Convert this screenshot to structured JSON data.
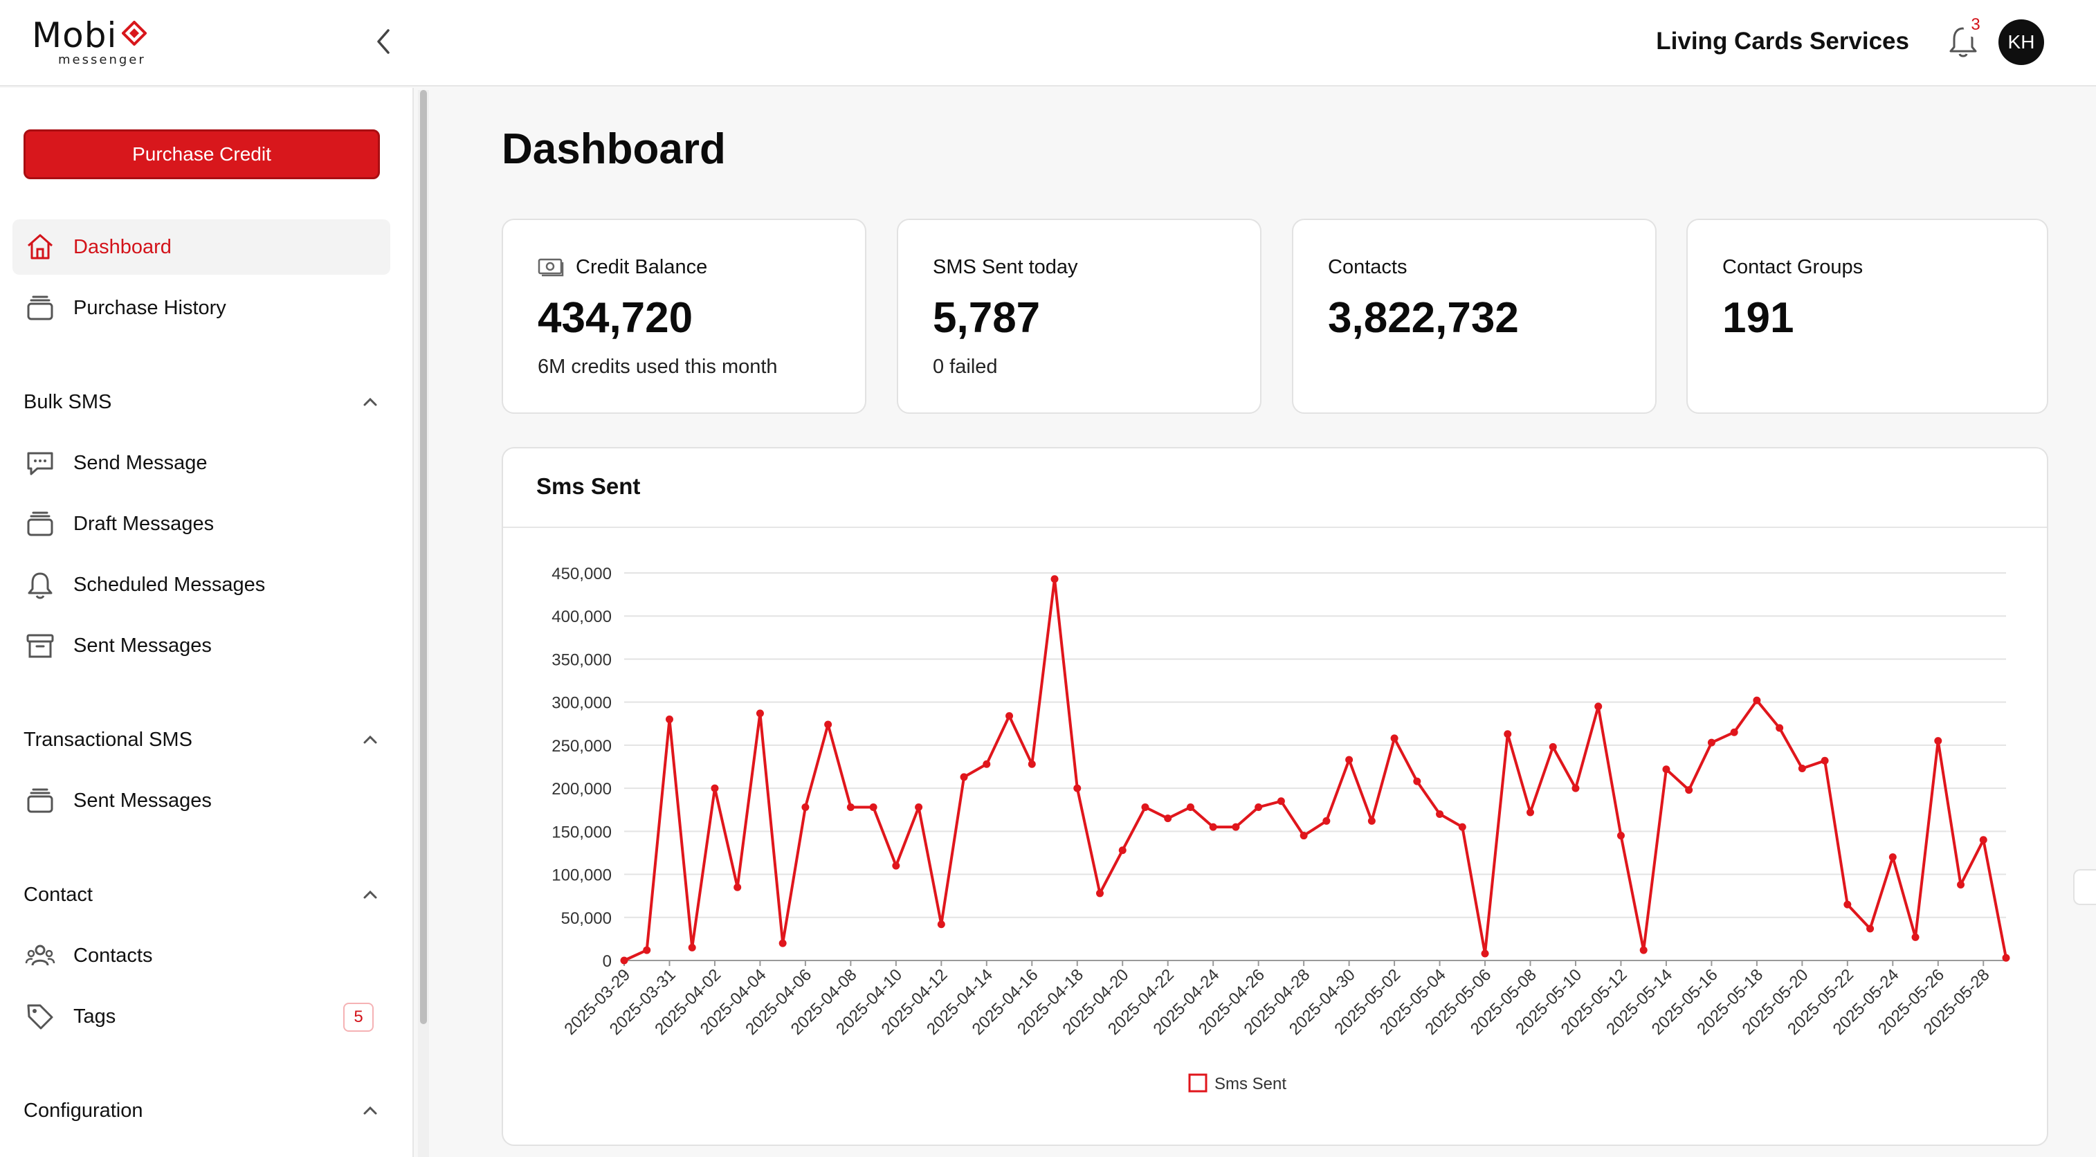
{
  "header": {
    "logo_main": "Mobi",
    "logo_sub": "messenger",
    "org_name": "Living Cards Services",
    "notification_count": "3",
    "avatar_initials": "KH"
  },
  "sidebar": {
    "purchase_label": "Purchase Credit",
    "top_items": [
      {
        "label": "Dashboard",
        "icon": "home-icon"
      },
      {
        "label": "Purchase History",
        "icon": "folder-icon"
      }
    ],
    "bulk_sms": {
      "label": "Bulk SMS",
      "items": [
        {
          "label": "Send Message",
          "icon": "chat-icon"
        },
        {
          "label": "Draft Messages",
          "icon": "folder-icon"
        },
        {
          "label": "Scheduled Messages",
          "icon": "bell-icon"
        },
        {
          "label": "Sent Messages",
          "icon": "archive-icon"
        }
      ]
    },
    "transactional_sms": {
      "label": "Transactional SMS",
      "items": [
        {
          "label": "Sent Messages",
          "icon": "folder-icon"
        }
      ]
    },
    "contact": {
      "label": "Contact",
      "items": [
        {
          "label": "Contacts",
          "icon": "users-icon"
        },
        {
          "label": "Tags",
          "icon": "tag-icon",
          "badge": "5"
        }
      ]
    },
    "configuration": {
      "label": "Configuration"
    }
  },
  "main": {
    "title": "Dashboard",
    "cards": [
      {
        "title": "Credit Balance",
        "value": "434,720",
        "sub": "6M credits used this month",
        "icon": "money-icon"
      },
      {
        "title": "SMS Sent today",
        "value": "5,787",
        "sub": "0 failed"
      },
      {
        "title": "Contacts",
        "value": "3,822,732",
        "sub": ""
      },
      {
        "title": "Contact Groups",
        "value": "191",
        "sub": ""
      }
    ]
  },
  "colors": {
    "accent": "#d8171c",
    "line": "#e0161c"
  },
  "chart_data": {
    "type": "line",
    "title": "Sms Sent",
    "xlabel": "",
    "ylabel": "",
    "ylim": [
      0,
      450000
    ],
    "yticks": [
      "0",
      "50,000",
      "100,000",
      "150,000",
      "200,000",
      "250,000",
      "300,000",
      "350,000",
      "400,000",
      "450,000"
    ],
    "legend": "bottom-center",
    "grid": true,
    "x": [
      "2025-03-29",
      "2025-03-30",
      "2025-03-31",
      "2025-04-01",
      "2025-04-02",
      "2025-04-03",
      "2025-04-04",
      "2025-04-05",
      "2025-04-06",
      "2025-04-07",
      "2025-04-08",
      "2025-04-09",
      "2025-04-10",
      "2025-04-11",
      "2025-04-12",
      "2025-04-13",
      "2025-04-14",
      "2025-04-15",
      "2025-04-16",
      "2025-04-17",
      "2025-04-18",
      "2025-04-19",
      "2025-04-20",
      "2025-04-21",
      "2025-04-22",
      "2025-04-23",
      "2025-04-24",
      "2025-04-25",
      "2025-04-26",
      "2025-04-27",
      "2025-04-28",
      "2025-04-29",
      "2025-04-30",
      "2025-05-01",
      "2025-05-02",
      "2025-05-03",
      "2025-05-04",
      "2025-05-05",
      "2025-05-06",
      "2025-05-07",
      "2025-05-08",
      "2025-05-09",
      "2025-05-10",
      "2025-05-11",
      "2025-05-12",
      "2025-05-13",
      "2025-05-14",
      "2025-05-15",
      "2025-05-16",
      "2025-05-17",
      "2025-05-18",
      "2025-05-19",
      "2025-05-20",
      "2025-05-21",
      "2025-05-22",
      "2025-05-23",
      "2025-05-24",
      "2025-05-25",
      "2025-05-26",
      "2025-05-27",
      "2025-05-28",
      "2025-05-29"
    ],
    "xticks": [
      "2025-03-29",
      "2025-03-31",
      "2025-04-02",
      "2025-04-04",
      "2025-04-06",
      "2025-04-08",
      "2025-04-10",
      "2025-04-12",
      "2025-04-14",
      "2025-04-16",
      "2025-04-18",
      "2025-04-20",
      "2025-04-22",
      "2025-04-24",
      "2025-04-26",
      "2025-04-28",
      "2025-04-30",
      "2025-05-02",
      "2025-05-04",
      "2025-05-06",
      "2025-05-08",
      "2025-05-10",
      "2025-05-12",
      "2025-05-14",
      "2025-05-16",
      "2025-05-18",
      "2025-05-20",
      "2025-05-22",
      "2025-05-24",
      "2025-05-26",
      "2025-05-28"
    ],
    "series": [
      {
        "name": "Sms Sent",
        "values": [
          0,
          12000,
          280000,
          15000,
          200000,
          85000,
          287000,
          20000,
          178000,
          274000,
          178000,
          178000,
          110000,
          178000,
          42000,
          213000,
          228000,
          284000,
          228000,
          443000,
          200000,
          78000,
          128000,
          178000,
          165000,
          178000,
          155000,
          155000,
          178000,
          185000,
          145000,
          162000,
          233000,
          162000,
          258000,
          208000,
          170000,
          155000,
          8000,
          263000,
          172000,
          248000,
          200000,
          295000,
          145000,
          12000,
          222000,
          198000,
          253000,
          265000,
          302000,
          270000,
          223000,
          232000,
          65000,
          37000,
          120000,
          27000,
          255000,
          88000,
          140000,
          3000
        ]
      }
    ]
  }
}
